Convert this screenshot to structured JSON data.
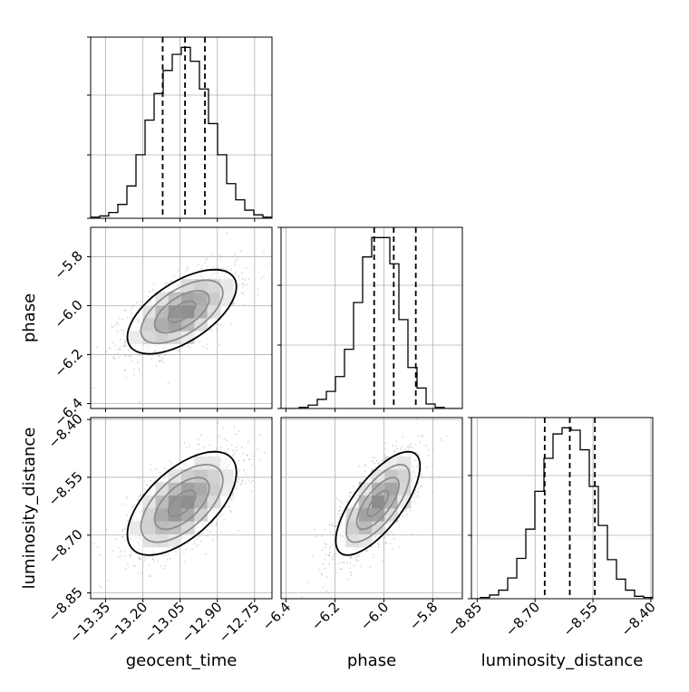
{
  "chart_data": {
    "type": "corner",
    "params": [
      "geocent_time",
      "phase",
      "luminosity_distance"
    ],
    "axis_labels": {
      "geocent_time": "geocent_time",
      "phase": "phase",
      "luminosity_distance": "luminosity_distance"
    },
    "ranges": {
      "geocent_time": [
        -13.41,
        -12.68
      ],
      "phase": [
        -6.42,
        -5.68
      ],
      "luminosity_distance": [
        -8.865,
        -8.395
      ]
    },
    "ticks": {
      "geocent_time": [
        -13.35,
        -13.2,
        -13.05,
        -12.9,
        -12.75
      ],
      "phase": [
        -6.4,
        -6.2,
        -6.0,
        -5.8
      ],
      "luminosity_distance": [
        -8.85,
        -8.7,
        -8.55,
        -8.4
      ]
    },
    "tick_labels": {
      "geocent_time": [
        "−13.35",
        "−13.20",
        "−13.05",
        "−12.90",
        "−12.75"
      ],
      "phase": [
        "−6.4",
        "−6.2",
        "−6.0",
        "−5.8"
      ],
      "luminosity_distance": [
        "−8.85",
        "−8.70",
        "−8.55",
        "−8.40"
      ]
    },
    "quantiles": {
      "geocent_time": [
        -13.12,
        -13.03,
        -12.95
      ],
      "phase": [
        -6.04,
        -5.96,
        -5.87
      ],
      "luminosity_distance": [
        -8.675,
        -8.61,
        -8.545
      ]
    },
    "histograms": {
      "geocent_time": {
        "edges": [
          -13.41,
          -13.3735,
          -13.337,
          -13.3005,
          -13.264,
          -13.2275,
          -13.191,
          -13.1545,
          -13.118,
          -13.0815,
          -13.045,
          -13.0085,
          -12.972,
          -12.9355,
          -12.899,
          -12.8625,
          -12.826,
          -12.7895,
          -12.753,
          -12.7165,
          -12.68
        ],
        "counts": [
          1,
          2,
          5,
          12,
          28,
          55,
          85,
          108,
          128,
          142,
          148,
          136,
          112,
          82,
          55,
          30,
          16,
          7,
          3,
          1
        ]
      },
      "phase": {
        "edges": [
          -6.42,
          -6.383,
          -6.346,
          -6.309,
          -6.272,
          -6.235,
          -6.198,
          -6.161,
          -6.124,
          -6.087,
          -6.05,
          -6.013,
          -5.976,
          -5.939,
          -5.902,
          -5.865,
          -5.828,
          -5.791,
          -5.754,
          -5.717,
          -5.68
        ],
        "counts": [
          0,
          0,
          1,
          3,
          8,
          15,
          28,
          52,
          93,
          133,
          150,
          150,
          127,
          78,
          36,
          18,
          4,
          1,
          0,
          0
        ]
      },
      "luminosity_distance": {
        "edges": [
          -8.865,
          -8.8415,
          -8.818,
          -8.7945,
          -8.771,
          -8.7475,
          -8.724,
          -8.7005,
          -8.677,
          -8.6535,
          -8.63,
          -8.6065,
          -8.583,
          -8.5595,
          -8.536,
          -8.5125,
          -8.489,
          -8.4655,
          -8.442,
          -8.4185,
          -8.395
        ],
        "counts": [
          0,
          1,
          3,
          7,
          17,
          33,
          57,
          88,
          115,
          135,
          140,
          138,
          122,
          92,
          60,
          32,
          16,
          7,
          2,
          1
        ]
      }
    },
    "correlations": {
      "phase|geocent_time": 0.6,
      "luminosity_distance|geocent_time": 0.6,
      "luminosity_distance|phase": 0.72
    },
    "grid": true,
    "legend": "none"
  }
}
